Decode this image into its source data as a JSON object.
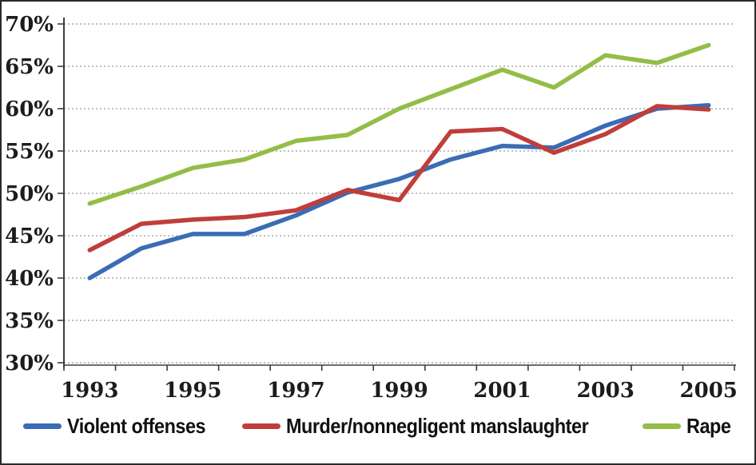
{
  "chart_data": {
    "type": "line",
    "title": "",
    "xlabel": "",
    "ylabel": "",
    "x": [
      1993,
      1994,
      1995,
      1996,
      1997,
      1998,
      1999,
      2000,
      2001,
      2002,
      2003,
      2004,
      2005
    ],
    "x_tick_labels": [
      "1993",
      "1995",
      "1997",
      "1999",
      "2001",
      "2003",
      "2005"
    ],
    "y_axis": {
      "min": 30,
      "max": 70,
      "step": 5,
      "format": "percent"
    },
    "y_tick_labels": [
      "30%",
      "35%",
      "40%",
      "45%",
      "50%",
      "55%",
      "60%",
      "65%",
      "70%"
    ],
    "grid": "horizontal-dotted",
    "legend_position": "bottom",
    "series": [
      {
        "name": "Violent offenses",
        "color": "#3b6cb5",
        "values": [
          40.0,
          43.5,
          45.2,
          45.2,
          47.4,
          50.1,
          51.7,
          54.0,
          55.6,
          55.4,
          58.0,
          60.0,
          60.4
        ]
      },
      {
        "name": "Murder/nonnegligent manslaughter",
        "color": "#bf3e3b",
        "values": [
          43.3,
          46.4,
          46.9,
          47.2,
          48.0,
          50.4,
          49.2,
          57.3,
          57.6,
          54.8,
          57.0,
          60.3,
          59.9
        ]
      },
      {
        "name": "Rape",
        "color": "#94bd47",
        "values": [
          48.8,
          50.8,
          53.0,
          54.0,
          56.2,
          56.9,
          60.0,
          62.3,
          64.6,
          62.5,
          66.3,
          65.4,
          67.5
        ]
      }
    ],
    "colors": {
      "gridline": "#a9a9a9",
      "axis": "#3d3d3d",
      "tick_text": "#1c1c1c"
    }
  }
}
